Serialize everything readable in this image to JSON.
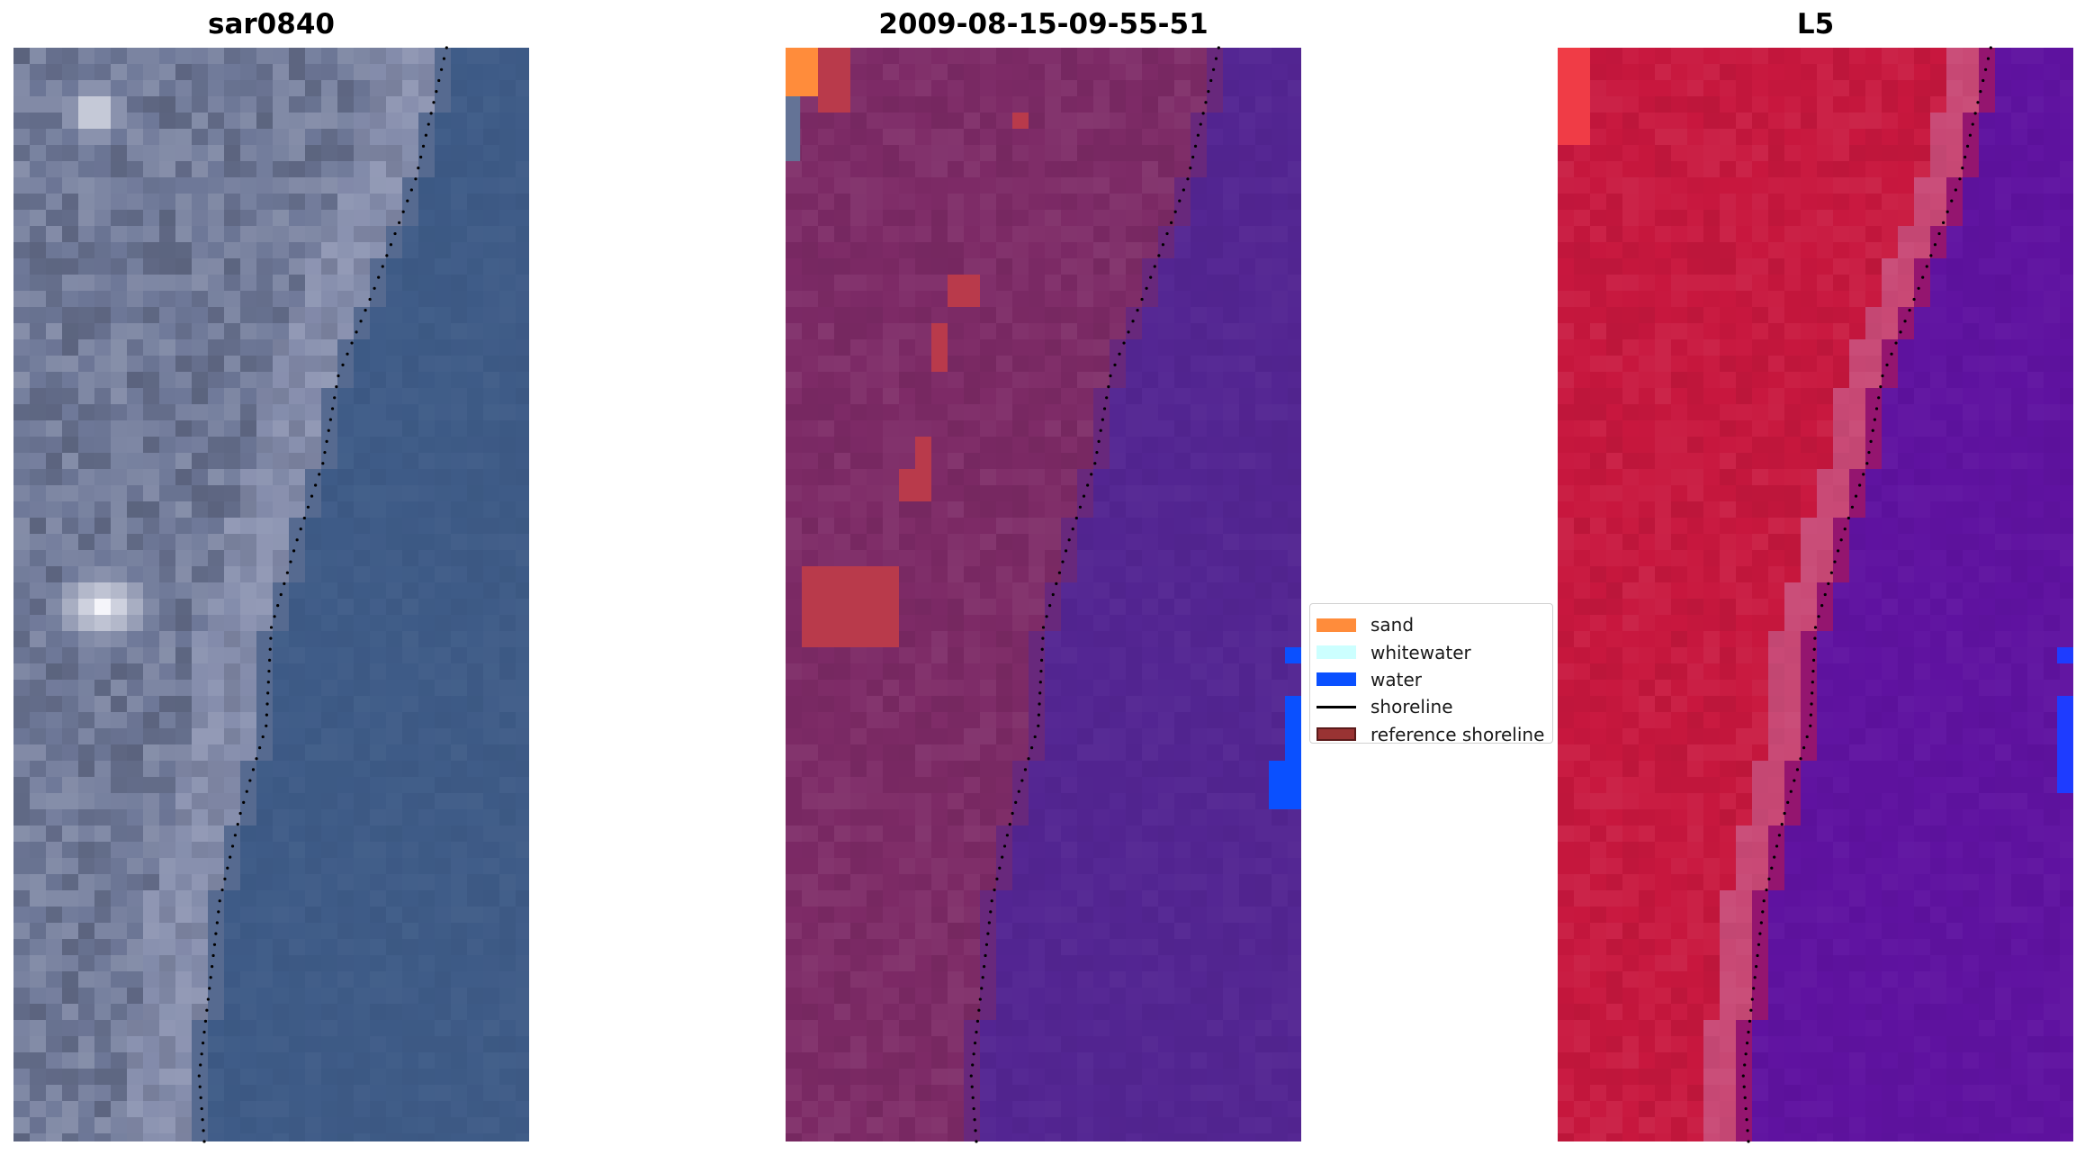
{
  "panels": [
    {
      "title": "sar0840",
      "style": "sar"
    },
    {
      "title": "2009-08-15-09-55-51",
      "style": "classified"
    },
    {
      "title": "L5",
      "style": "index"
    }
  ],
  "legend": {
    "items": [
      {
        "label": "sand",
        "color": "#ff8c3b",
        "kind": "patch"
      },
      {
        "label": "whitewater",
        "color": "#ccffff",
        "kind": "patch"
      },
      {
        "label": "water",
        "color": "#0a50ff",
        "kind": "patch"
      },
      {
        "label": "shoreline",
        "color": "#000000",
        "kind": "line"
      },
      {
        "label": "reference shoreline",
        "color": "#993333",
        "edge": "#5a1a1a",
        "kind": "patch"
      }
    ]
  },
  "colors": {
    "sar_water": "#3e5b87",
    "sar_land": "#6e7898",
    "classified_land": "#7d2a66",
    "classified_water": "#532592",
    "index_land": "#c8173e",
    "index_water": "#5f12a0",
    "shoreline_dots": "#000000"
  }
}
